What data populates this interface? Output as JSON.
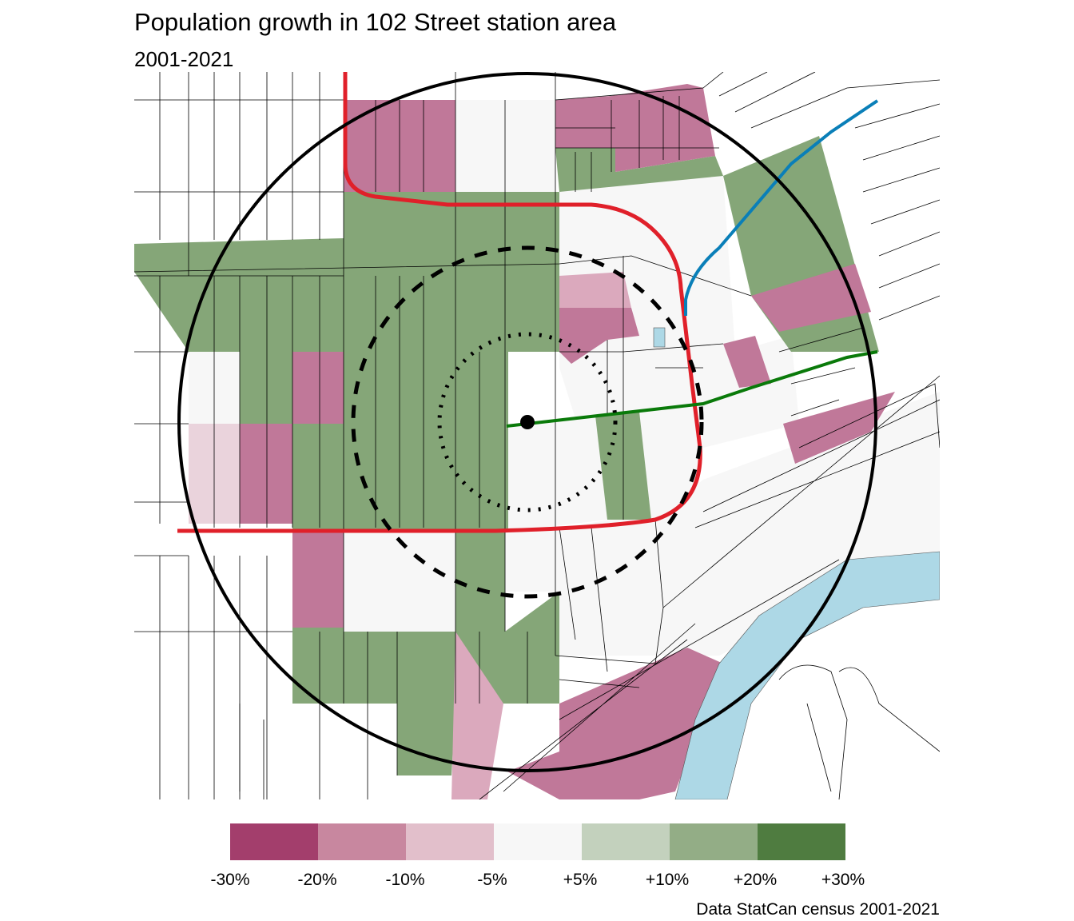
{
  "title": "Population growth in 102 Street station area",
  "subtitle": "2001-2021",
  "legend": {
    "labels": [
      "-30%",
      "-20%",
      "-10%",
      "-5%",
      "+5%",
      "+10%",
      "+20%",
      "+30%"
    ],
    "colors": [
      "#a33e6c",
      "#c8879f",
      "#e2bfcb",
      "#f7f7f7",
      "#c3d1bd",
      "#93ad86",
      "#4f7c40"
    ]
  },
  "map_colors": {
    "decline_strong": "#c07899",
    "decline_light": "#dba9bd",
    "decline_slight": "#ead3dc",
    "stable": "#f7f7f7",
    "growth": "#85a678",
    "water": "#add8e6",
    "lrt_red": "#e0202a",
    "lrt_blue": "#0a7fb8",
    "lrt_green": "#0a7a0a"
  },
  "caption": "Data StatCan census 2001-2021"
}
